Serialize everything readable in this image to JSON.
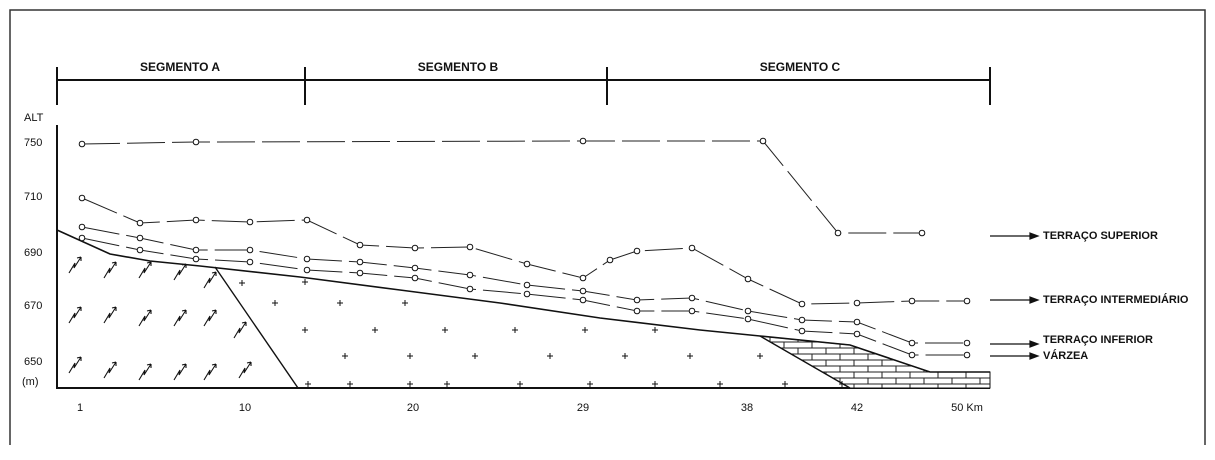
{
  "segments": [
    "SEGMENTO A",
    "SEGMENTO B",
    "SEGMENTO C"
  ],
  "axis": {
    "y_label": "ALT",
    "y_unit": "(m)",
    "y_ticks": [
      750,
      710,
      690,
      670,
      650
    ],
    "x_ticks": [
      1,
      10,
      20,
      29,
      38,
      42
    ],
    "x_end": "50 Km"
  },
  "terraces": [
    "TERRAÇO SUPERIOR",
    "TERRAÇO INTERMEDIÁRIO",
    "TERRAÇO INFERIOR",
    "VÁRZEA"
  ]
}
